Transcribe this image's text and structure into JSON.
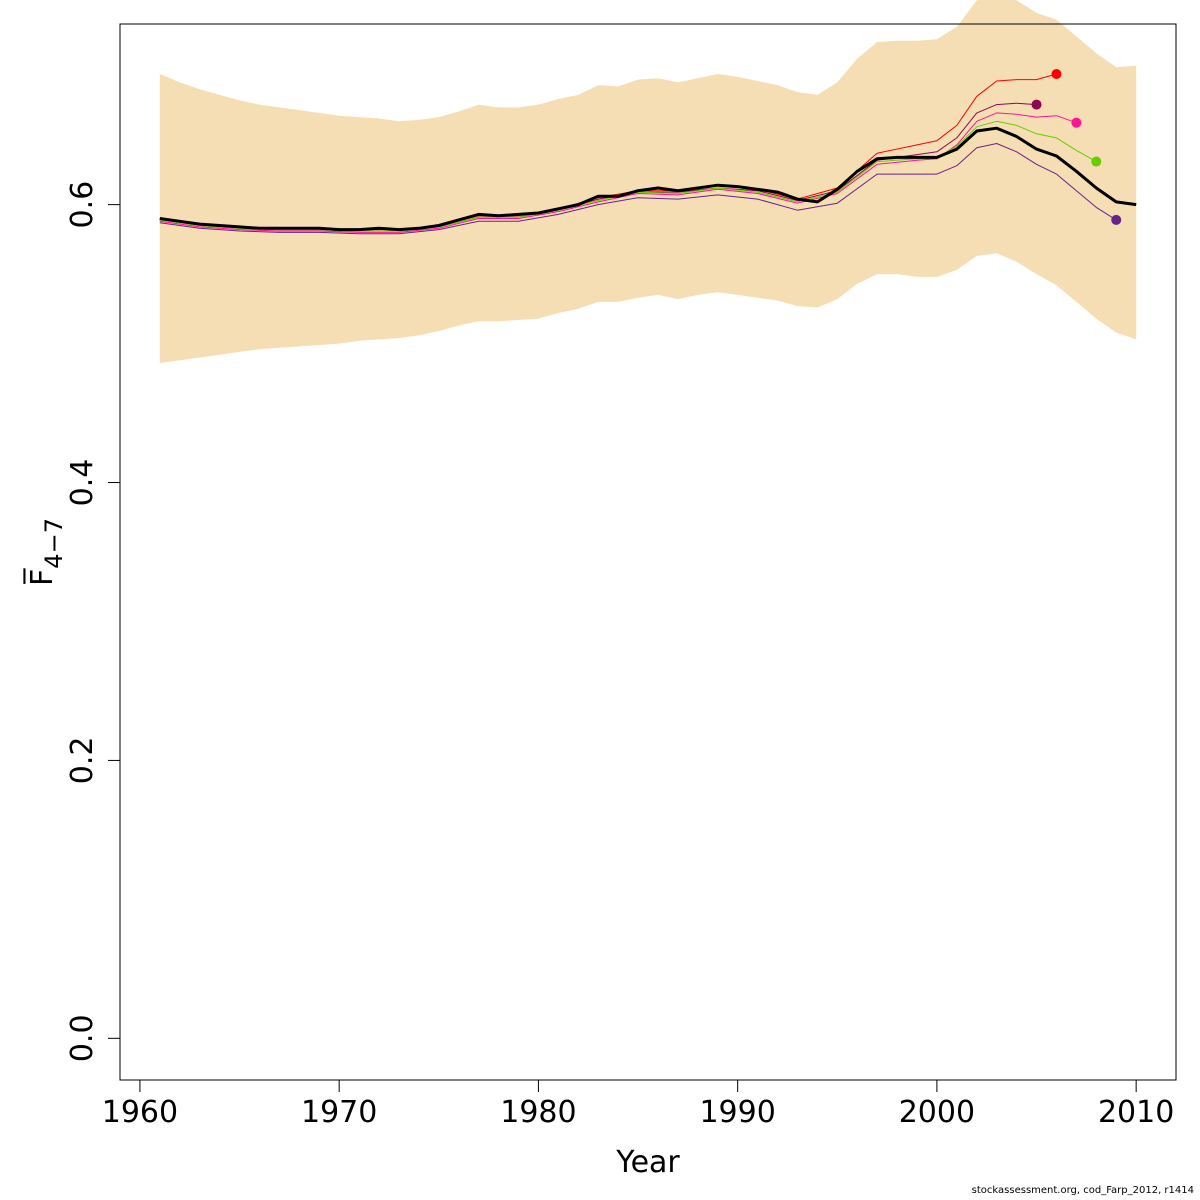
{
  "chart_data": {
    "type": "line",
    "xlabel": "Year",
    "ylabel": "F̅",
    "ylabel_subscript": "4−7",
    "xlim": [
      1959,
      2012
    ],
    "ylim": [
      -0.03,
      0.73
    ],
    "x_ticks": [
      1960,
      1970,
      1980,
      1990,
      2000,
      2010
    ],
    "y_ticks": [
      0.0,
      0.2,
      0.4,
      0.6
    ],
    "x_tick_labels": [
      "1960",
      "1970",
      "1980",
      "1990",
      "2000",
      "2010"
    ],
    "y_tick_labels": [
      "0.0",
      "0.2",
      "0.4",
      "0.6"
    ],
    "grid": false,
    "band": {
      "color": "#F5DEB3",
      "x": [
        1961,
        1962,
        1963,
        1964,
        1965,
        1966,
        1967,
        1968,
        1969,
        1970,
        1971,
        1972,
        1973,
        1974,
        1975,
        1976,
        1977,
        1978,
        1979,
        1980,
        1981,
        1982,
        1983,
        1984,
        1985,
        1986,
        1987,
        1988,
        1989,
        1990,
        1991,
        1992,
        1993,
        1994,
        1995,
        1996,
        1997,
        1998,
        1999,
        2000,
        2001,
        2002,
        2003,
        2004,
        2005,
        2006,
        2007,
        2008,
        2009,
        2010
      ],
      "upper": [
        0.694,
        0.688,
        0.683,
        0.679,
        0.675,
        0.672,
        0.67,
        0.668,
        0.666,
        0.664,
        0.663,
        0.662,
        0.66,
        0.661,
        0.663,
        0.667,
        0.672,
        0.67,
        0.67,
        0.672,
        0.676,
        0.679,
        0.686,
        0.685,
        0.69,
        0.691,
        0.688,
        0.691,
        0.694,
        0.692,
        0.689,
        0.686,
        0.681,
        0.679,
        0.688,
        0.705,
        0.717,
        0.718,
        0.718,
        0.719,
        0.728,
        0.747,
        0.753,
        0.747,
        0.738,
        0.733,
        0.721,
        0.709,
        0.699,
        0.7
      ],
      "lower": [
        0.486,
        0.488,
        0.49,
        0.492,
        0.494,
        0.496,
        0.497,
        0.498,
        0.499,
        0.5,
        0.502,
        0.503,
        0.504,
        0.506,
        0.509,
        0.513,
        0.516,
        0.516,
        0.517,
        0.518,
        0.522,
        0.525,
        0.53,
        0.53,
        0.533,
        0.535,
        0.532,
        0.535,
        0.537,
        0.535,
        0.533,
        0.531,
        0.527,
        0.526,
        0.532,
        0.543,
        0.55,
        0.55,
        0.548,
        0.548,
        0.553,
        0.563,
        0.565,
        0.559,
        0.55,
        0.542,
        0.53,
        0.518,
        0.508,
        0.503
      ]
    },
    "series": [
      {
        "color": "#000000",
        "width": 3,
        "x": [
          1961,
          1962,
          1963,
          1964,
          1965,
          1966,
          1967,
          1968,
          1969,
          1970,
          1971,
          1972,
          1973,
          1974,
          1975,
          1976,
          1977,
          1978,
          1979,
          1980,
          1981,
          1982,
          1983,
          1984,
          1985,
          1986,
          1987,
          1988,
          1989,
          1990,
          1991,
          1992,
          1993,
          1994,
          1995,
          1996,
          1997,
          1998,
          1999,
          2000,
          2001,
          2002,
          2003,
          2004,
          2005,
          2006,
          2007,
          2008,
          2009,
          2010
        ],
        "values": [
          0.59,
          0.588,
          0.586,
          0.585,
          0.584,
          0.583,
          0.583,
          0.583,
          0.583,
          0.582,
          0.582,
          0.583,
          0.582,
          0.583,
          0.585,
          0.589,
          0.593,
          0.592,
          0.593,
          0.594,
          0.597,
          0.6,
          0.606,
          0.606,
          0.61,
          0.612,
          0.61,
          0.612,
          0.614,
          0.613,
          0.611,
          0.609,
          0.604,
          0.602,
          0.611,
          0.624,
          0.633,
          0.634,
          0.634,
          0.634,
          0.64,
          0.653,
          0.655,
          0.649,
          0.64,
          0.635,
          0.624,
          0.612,
          0.602,
          0.6
        ]
      },
      {
        "color": "#FF0000",
        "width": 1,
        "x": [
          1961,
          1963,
          1965,
          1967,
          1969,
          1971,
          1973,
          1975,
          1977,
          1979,
          1981,
          1983,
          1985,
          1987,
          1989,
          1991,
          1993,
          1995,
          1997,
          1999,
          2000,
          2001,
          2002,
          2003,
          2004,
          2005,
          2006
        ],
        "values": [
          0.59,
          0.586,
          0.584,
          0.583,
          0.583,
          0.582,
          0.582,
          0.585,
          0.592,
          0.592,
          0.597,
          0.605,
          0.61,
          0.61,
          0.614,
          0.611,
          0.604,
          0.612,
          0.637,
          0.643,
          0.646,
          0.657,
          0.678,
          0.689,
          0.69,
          0.69,
          0.694
        ],
        "endpoint": true
      },
      {
        "color": "#8B0A50",
        "width": 1,
        "x": [
          1961,
          1963,
          1965,
          1967,
          1969,
          1971,
          1973,
          1975,
          1977,
          1979,
          1981,
          1983,
          1985,
          1987,
          1989,
          1991,
          1993,
          1995,
          1997,
          1999,
          2000,
          2001,
          2002,
          2003,
          2004,
          2005
        ],
        "values": [
          0.589,
          0.585,
          0.583,
          0.582,
          0.582,
          0.581,
          0.581,
          0.584,
          0.591,
          0.591,
          0.596,
          0.604,
          0.609,
          0.609,
          0.612,
          0.61,
          0.603,
          0.61,
          0.632,
          0.636,
          0.638,
          0.648,
          0.666,
          0.672,
          0.673,
          0.672
        ],
        "endpoint": true
      },
      {
        "color": "#FF1493",
        "width": 1,
        "x": [
          1961,
          1963,
          1965,
          1967,
          1969,
          1971,
          1973,
          1975,
          1977,
          1979,
          1981,
          1983,
          1985,
          1987,
          1989,
          1991,
          1993,
          1995,
          1997,
          1999,
          2000,
          2001,
          2002,
          2003,
          2004,
          2005,
          2006,
          2007
        ],
        "values": [
          0.588,
          0.584,
          0.582,
          0.581,
          0.581,
          0.58,
          0.58,
          0.583,
          0.59,
          0.59,
          0.595,
          0.602,
          0.608,
          0.607,
          0.611,
          0.608,
          0.601,
          0.608,
          0.629,
          0.632,
          0.633,
          0.643,
          0.66,
          0.666,
          0.665,
          0.663,
          0.664,
          0.659
        ],
        "endpoint": true
      },
      {
        "color": "#66CD00",
        "width": 1,
        "x": [
          1961,
          1963,
          1965,
          1967,
          1969,
          1971,
          1973,
          1975,
          1977,
          1979,
          1981,
          1983,
          1985,
          1987,
          1989,
          1991,
          1993,
          1995,
          1997,
          1999,
          2000,
          2001,
          2002,
          2003,
          2004,
          2005,
          2006,
          2007,
          2008
        ],
        "values": [
          0.589,
          0.585,
          0.583,
          0.582,
          0.582,
          0.581,
          0.581,
          0.584,
          0.591,
          0.591,
          0.596,
          0.603,
          0.609,
          0.608,
          0.612,
          0.609,
          0.602,
          0.609,
          0.631,
          0.633,
          0.634,
          0.642,
          0.656,
          0.66,
          0.657,
          0.651,
          0.648,
          0.639,
          0.631
        ],
        "endpoint": true
      },
      {
        "color": "#68228B",
        "width": 1,
        "x": [
          1961,
          1963,
          1965,
          1967,
          1969,
          1971,
          1973,
          1975,
          1977,
          1979,
          1981,
          1983,
          1985,
          1987,
          1989,
          1991,
          1993,
          1995,
          1997,
          1999,
          2000,
          2001,
          2002,
          2003,
          2004,
          2005,
          2006,
          2007,
          2008,
          2009
        ],
        "values": [
          0.587,
          0.583,
          0.581,
          0.58,
          0.58,
          0.579,
          0.579,
          0.582,
          0.588,
          0.588,
          0.593,
          0.6,
          0.605,
          0.604,
          0.607,
          0.604,
          0.596,
          0.601,
          0.622,
          0.622,
          0.622,
          0.628,
          0.641,
          0.644,
          0.638,
          0.629,
          0.622,
          0.61,
          0.598,
          0.589
        ],
        "endpoint": true
      }
    ]
  },
  "footer": "stockassessment.org, cod_Farp_2012, r1414"
}
